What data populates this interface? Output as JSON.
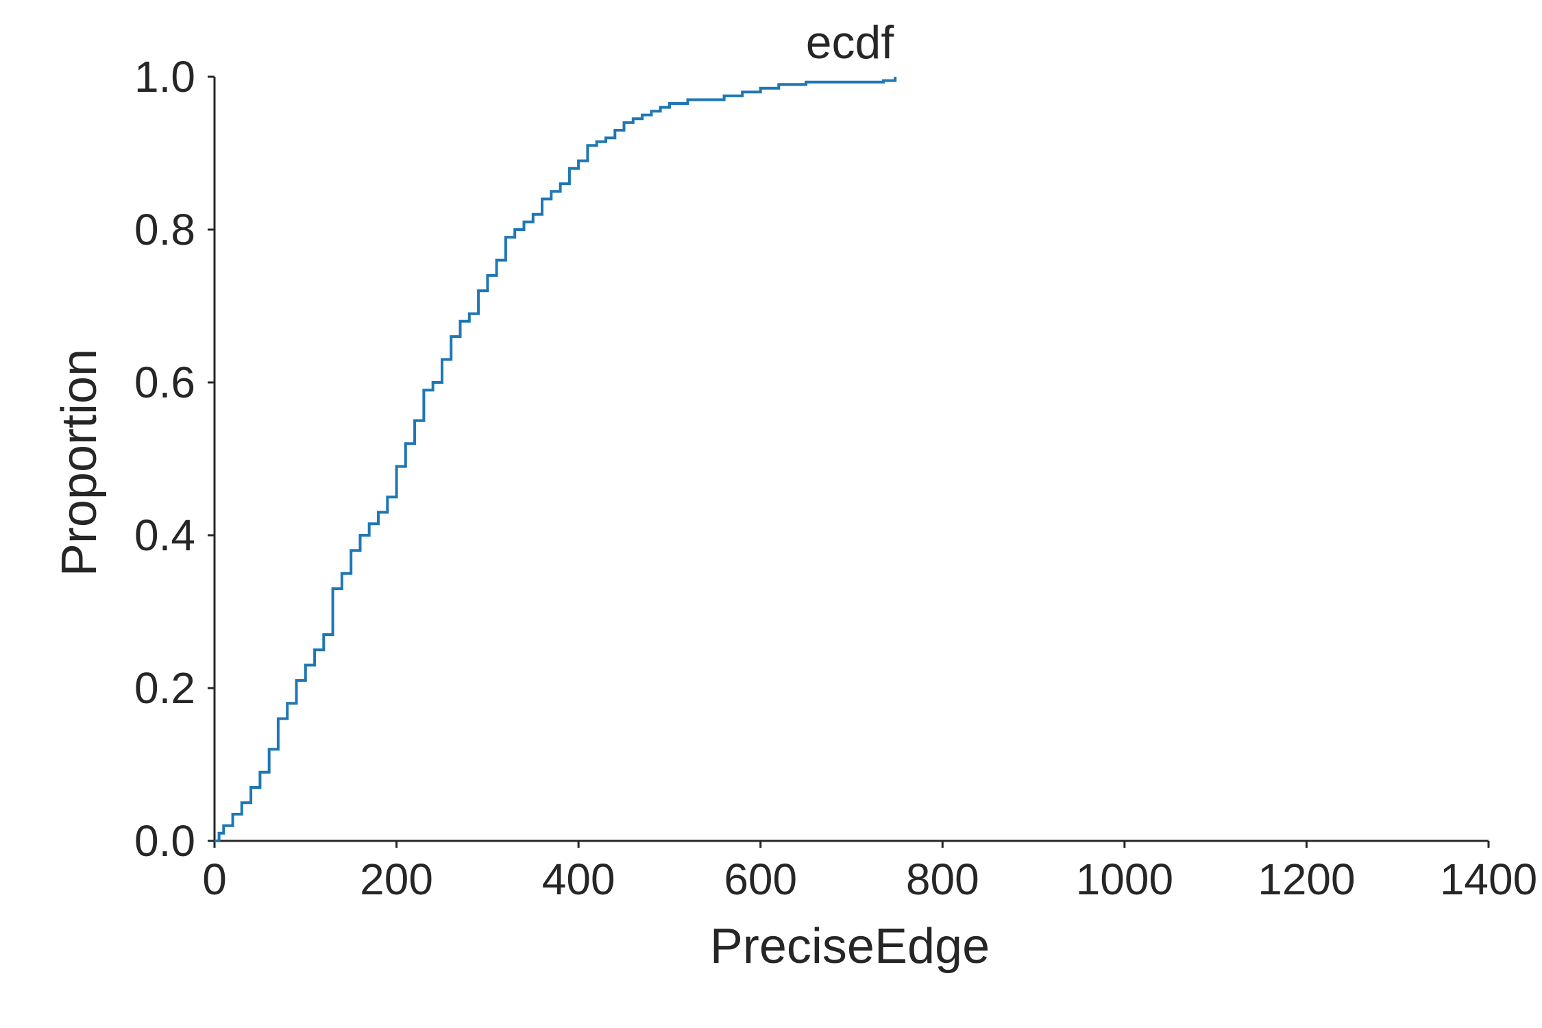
{
  "chart_data": {
    "type": "line",
    "title": "ecdf",
    "xlabel": "PreciseEdge",
    "ylabel": "Proportion",
    "xlim": [
      0,
      1400
    ],
    "ylim": [
      0,
      1.0
    ],
    "x_ticks": [
      "0",
      "200",
      "400",
      "600",
      "800",
      "1000",
      "1200",
      "1400"
    ],
    "y_ticks": [
      "0.0",
      "0.2",
      "0.4",
      "0.6",
      "0.8",
      "1.0"
    ],
    "grid": false,
    "legend": "none",
    "series": [
      {
        "color": "#1f77b4",
        "x": [
          0,
          5,
          10,
          20,
          30,
          40,
          50,
          60,
          70,
          80,
          90,
          100,
          110,
          120,
          130,
          140,
          150,
          160,
          170,
          180,
          190,
          200,
          210,
          220,
          230,
          240,
          250,
          260,
          270,
          280,
          290,
          300,
          310,
          320,
          330,
          340,
          350,
          360,
          370,
          380,
          390,
          400,
          410,
          420,
          430,
          440,
          450,
          460,
          470,
          480,
          490,
          500,
          520,
          540,
          560,
          580,
          600,
          620,
          650,
          700,
          735,
          748
        ],
        "y": [
          0.0,
          0.01,
          0.02,
          0.035,
          0.05,
          0.07,
          0.09,
          0.12,
          0.16,
          0.18,
          0.21,
          0.23,
          0.25,
          0.27,
          0.33,
          0.35,
          0.38,
          0.4,
          0.415,
          0.43,
          0.45,
          0.49,
          0.52,
          0.55,
          0.59,
          0.6,
          0.63,
          0.66,
          0.68,
          0.69,
          0.72,
          0.74,
          0.76,
          0.79,
          0.8,
          0.81,
          0.82,
          0.84,
          0.85,
          0.86,
          0.88,
          0.89,
          0.91,
          0.915,
          0.92,
          0.93,
          0.94,
          0.945,
          0.95,
          0.955,
          0.96,
          0.965,
          0.97,
          0.97,
          0.975,
          0.98,
          0.985,
          0.99,
          0.993,
          0.993,
          0.995,
          1.0
        ]
      }
    ]
  }
}
